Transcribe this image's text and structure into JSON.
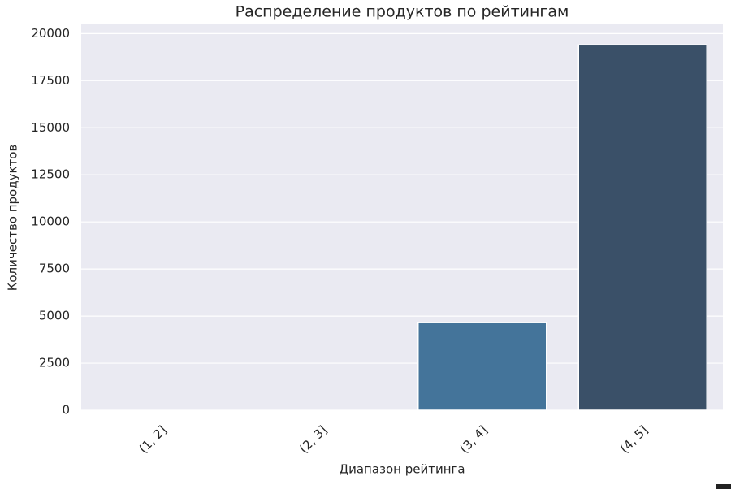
{
  "chart_data": {
    "type": "bar",
    "title": "Распределение продуктов по рейтингам",
    "x_label": "Диапазон рейтинга",
    "y_label": "Количество продуктов",
    "categories": [
      "(1, 2]",
      "(2, 3]",
      "(3, 4]",
      "(4, 5]"
    ],
    "values": [
      0,
      0,
      4650,
      19400
    ],
    "colors": [
      "#8fb5cf",
      "#5f93b8",
      "#44749a",
      "#3a5068"
    ],
    "ylim": [
      0,
      20490
    ],
    "yticks": [
      0,
      2500,
      5000,
      7500,
      10000,
      12500,
      15000,
      17500,
      20000
    ],
    "grid": true
  }
}
